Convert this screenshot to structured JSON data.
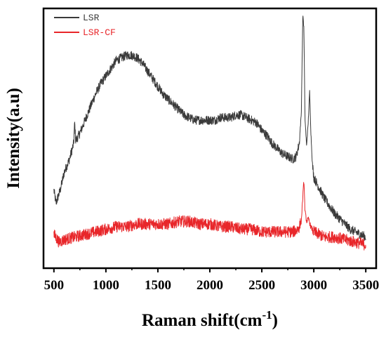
{
  "chart_data": {
    "type": "line",
    "title": "",
    "xlabel": "Raman shift(cm",
    "xlabel_sup": "-1",
    "xlabel_close": ")",
    "ylabel": "Intensity(a.u)",
    "xlim": [
      400,
      3600
    ],
    "ylim": [
      0,
      1
    ],
    "xticks": [
      500,
      1000,
      1500,
      2000,
      2500,
      3000,
      3500
    ],
    "xtick_labels": [
      "500",
      "1000",
      "1500",
      "2000",
      "2500",
      "3000",
      "3500"
    ],
    "y_tick_labels_shown": false,
    "grid": false,
    "legend_position": "top-left",
    "series": [
      {
        "name": "LSR",
        "color": "#3a3a3a",
        "x": [
          500,
          520,
          560,
          600,
          650,
          690,
          700,
          710,
          750,
          800,
          850,
          900,
          950,
          1000,
          1050,
          1100,
          1150,
          1200,
          1250,
          1300,
          1350,
          1400,
          1450,
          1500,
          1550,
          1600,
          1650,
          1700,
          1750,
          1800,
          1850,
          1900,
          1950,
          2000,
          2050,
          2100,
          2150,
          2200,
          2250,
          2300,
          2350,
          2400,
          2450,
          2500,
          2550,
          2600,
          2650,
          2700,
          2750,
          2800,
          2830,
          2860,
          2880,
          2895,
          2905,
          2915,
          2930,
          2945,
          2960,
          2972,
          2985,
          3000,
          3050,
          3100,
          3150,
          3200,
          3250,
          3300,
          3350,
          3400,
          3450,
          3500
        ],
        "values": [
          0.3,
          0.25,
          0.3,
          0.37,
          0.42,
          0.48,
          0.56,
          0.49,
          0.52,
          0.57,
          0.62,
          0.67,
          0.71,
          0.74,
          0.77,
          0.8,
          0.81,
          0.82,
          0.82,
          0.81,
          0.79,
          0.76,
          0.73,
          0.7,
          0.67,
          0.65,
          0.63,
          0.61,
          0.59,
          0.58,
          0.57,
          0.57,
          0.57,
          0.57,
          0.57,
          0.58,
          0.58,
          0.58,
          0.59,
          0.59,
          0.58,
          0.57,
          0.56,
          0.53,
          0.51,
          0.48,
          0.46,
          0.44,
          0.43,
          0.42,
          0.43,
          0.48,
          0.6,
          0.98,
          0.92,
          0.58,
          0.47,
          0.55,
          0.68,
          0.52,
          0.41,
          0.35,
          0.31,
          0.27,
          0.24,
          0.21,
          0.19,
          0.17,
          0.15,
          0.14,
          0.13,
          0.12
        ]
      },
      {
        "name": "LSR-CF",
        "color": "#e8262a",
        "x": [
          500,
          550,
          600,
          700,
          800,
          900,
          1000,
          1100,
          1200,
          1300,
          1400,
          1500,
          1600,
          1700,
          1800,
          1900,
          2000,
          2100,
          2200,
          2300,
          2400,
          2500,
          2600,
          2700,
          2800,
          2850,
          2880,
          2895,
          2905,
          2915,
          2930,
          2950,
          2970,
          3000,
          3050,
          3100,
          3200,
          3300,
          3400,
          3500
        ],
        "values": [
          0.13,
          0.1,
          0.11,
          0.12,
          0.13,
          0.14,
          0.15,
          0.16,
          0.16,
          0.17,
          0.17,
          0.17,
          0.17,
          0.18,
          0.18,
          0.17,
          0.17,
          0.16,
          0.16,
          0.15,
          0.15,
          0.14,
          0.14,
          0.14,
          0.14,
          0.15,
          0.18,
          0.28,
          0.34,
          0.22,
          0.18,
          0.19,
          0.16,
          0.14,
          0.13,
          0.12,
          0.12,
          0.11,
          0.1,
          0.09
        ]
      }
    ]
  }
}
